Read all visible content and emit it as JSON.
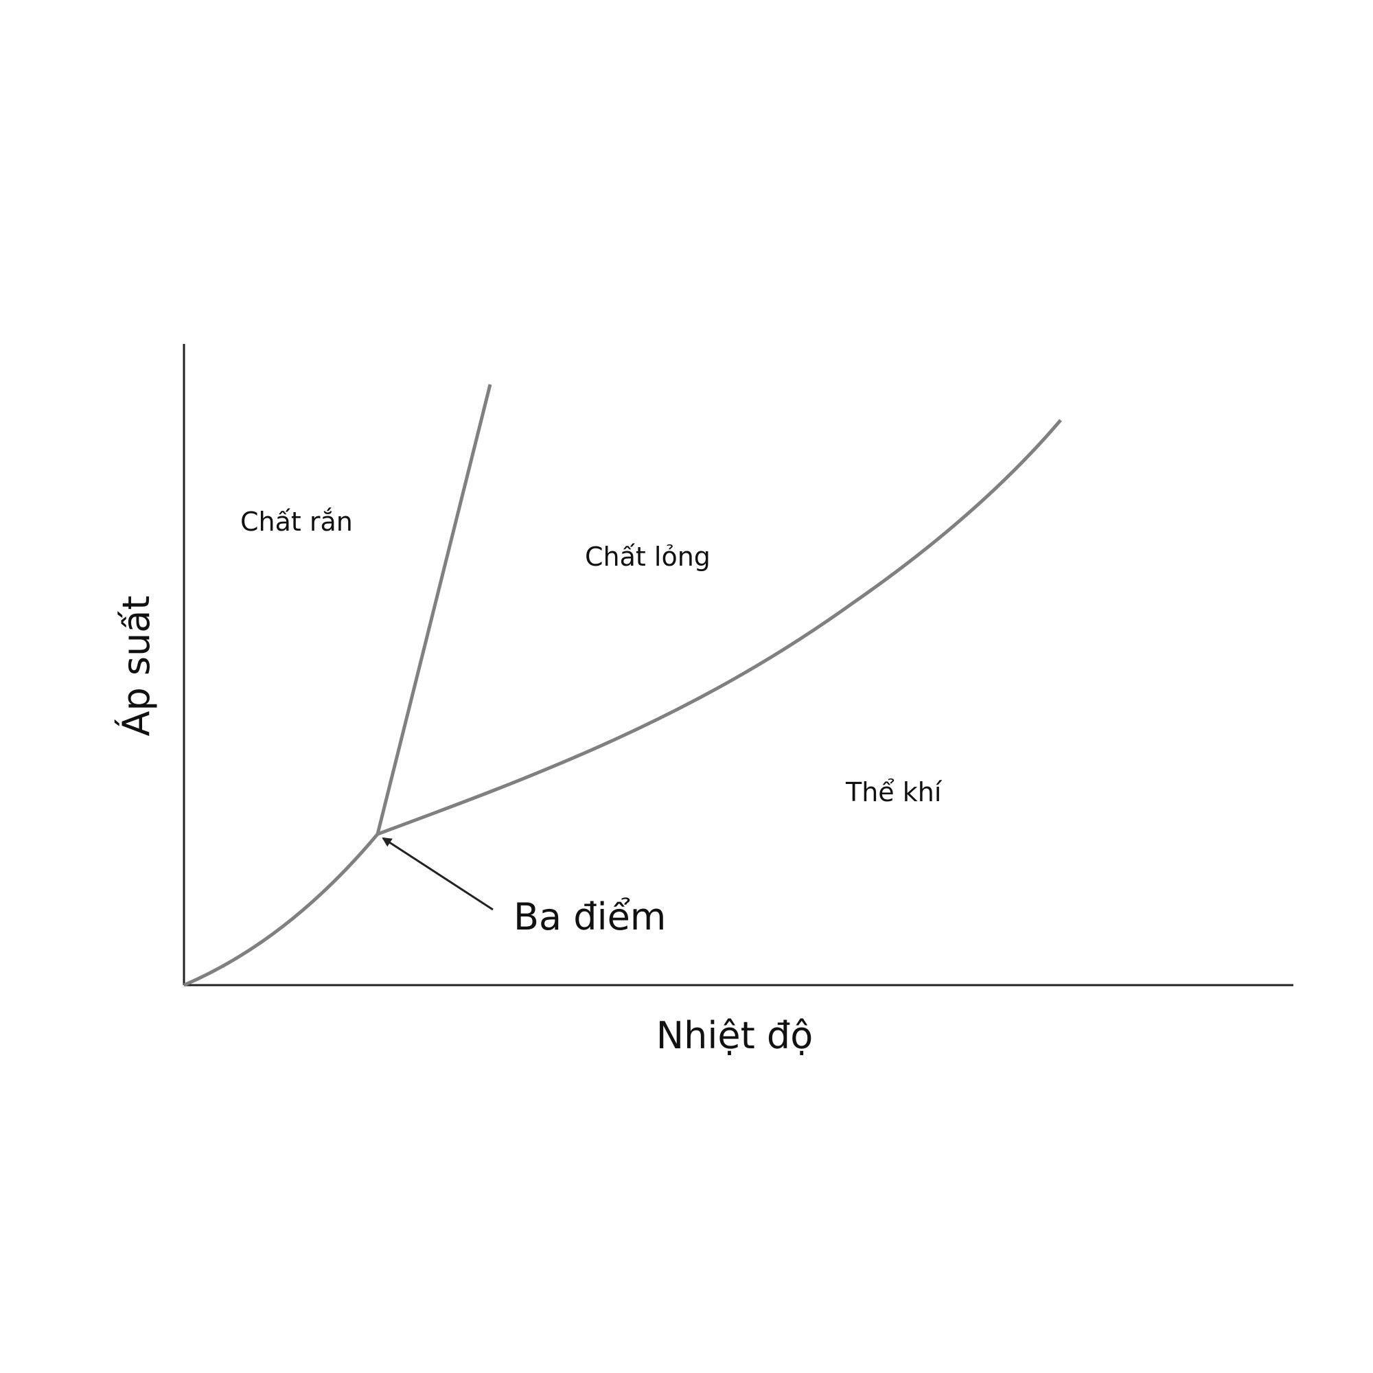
{
  "diagram": {
    "type": "phase-diagram",
    "axes": {
      "x_label": "Nhiệt độ",
      "y_label": "Áp suất"
    },
    "regions": {
      "solid": "Chất rắn",
      "liquid": "Chất lỏng",
      "gas": "Thể khí"
    },
    "annotation": {
      "label": "Ba điểm"
    },
    "colors": {
      "axis": "#222222",
      "curve": "#808080",
      "arrow": "#222222",
      "text": "#111111"
    }
  }
}
